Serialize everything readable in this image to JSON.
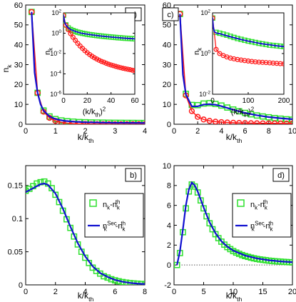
{
  "colors": {
    "green": "#2ee02e",
    "red": "#ff1a1a",
    "blue": "#1010d0",
    "axis": "#000000",
    "zero_line": "#555555"
  },
  "labels": {
    "a": "a)",
    "b": "b)",
    "c": "c)",
    "d": "d)",
    "nk": "n",
    "nk_sub": "k",
    "x_main": "k/k",
    "x_main_sub": "th",
    "x_inset_open": "(k/k",
    "x_inset_sub": "th",
    "x_inset_close": ")",
    "x_inset_sup": "2",
    "legend_b1_main": "n",
    "legend_b1_sub": "k",
    "legend_b1_mid": "-n",
    "legend_b1_sub2": "k",
    "legend_b1_sup2": "th",
    "legend_b2_main": "n",
    "legend_b2_sup": "Sec",
    "legend_b2_sub": "k",
    "legend_b2_mid": "-n",
    "legend_b2_sub2": "k",
    "legend_b2_sup2": "th"
  },
  "chart_data": [
    {
      "panel": "a",
      "type": "line",
      "xlabel": "k/k_th",
      "ylabel": "n_k",
      "xlim": [
        0,
        4
      ],
      "ylim": [
        0,
        60
      ],
      "xticks": [
        0,
        1,
        2,
        3,
        4
      ],
      "yticks": [
        0,
        10,
        20,
        30,
        40,
        50,
        60
      ],
      "series": [
        {
          "style": "green-squares",
          "x": [
            0.2,
            0.4,
            0.6,
            0.8,
            1.0,
            1.2,
            1.4,
            1.6,
            1.8,
            2.0,
            2.2,
            2.4,
            2.6,
            2.8,
            3.0,
            3.2,
            3.4,
            3.6,
            3.8,
            4.0
          ],
          "y": [
            56.5,
            15.8,
            6.9,
            3.9,
            2.6,
            1.9,
            1.5,
            1.3,
            1.1,
            1.0,
            0.9,
            0.85,
            0.8,
            0.75,
            0.72,
            0.7,
            0.68,
            0.66,
            0.64,
            0.62
          ]
        },
        {
          "style": "red-circles",
          "x": [
            0.2,
            0.4,
            0.6,
            0.8,
            1.0,
            1.2,
            1.4,
            1.6,
            1.8,
            2.0,
            2.2,
            2.4,
            2.6,
            2.8,
            3.0,
            3.2,
            3.4,
            3.6,
            3.8,
            4.0
          ],
          "y": [
            56.5,
            15.8,
            6.3,
            3.2,
            1.7,
            0.95,
            0.55,
            0.32,
            0.19,
            0.12,
            0.07,
            0.04,
            0.03,
            0.02,
            0.01,
            0.01,
            0.005,
            0.003,
            0.002,
            0.001
          ]
        },
        {
          "style": "blue-line",
          "x": [
            0.2,
            0.3,
            0.4,
            0.5,
            0.6,
            0.8,
            1.0,
            1.3,
            1.6,
            2.0,
            2.5,
            3.0,
            3.5,
            4.0
          ],
          "y": [
            56.5,
            26.0,
            15.8,
            10.0,
            6.9,
            3.9,
            2.6,
            1.7,
            1.3,
            1.0,
            0.82,
            0.72,
            0.66,
            0.62
          ]
        }
      ],
      "inset": {
        "xlabel": "(k/k_th)^2",
        "ylabel": "n_k",
        "scale": "log",
        "xlim": [
          0,
          60
        ],
        "ylim_exp": [
          -6,
          2
        ],
        "xticks": [
          0,
          20,
          40,
          60
        ],
        "yticks_exp": [
          -6,
          -4,
          -2,
          0,
          2
        ],
        "series": [
          {
            "style": "green-squares",
            "x": [
              0.04,
              2,
              4,
              6,
              8,
              10,
              12,
              14,
              16,
              18,
              20,
              22,
              24,
              26,
              28,
              30,
              32,
              34,
              36,
              38,
              40,
              42,
              44,
              46,
              48,
              50,
              52,
              54,
              56,
              58,
              60
            ],
            "y": [
              56.5,
              6.5,
              3.3,
              2.3,
              1.8,
              1.5,
              1.25,
              1.1,
              0.98,
              0.88,
              0.8,
              0.73,
              0.68,
              0.63,
              0.59,
              0.55,
              0.52,
              0.49,
              0.46,
              0.44,
              0.42,
              0.4,
              0.38,
              0.36,
              0.35,
              0.33,
              0.32,
              0.31,
              0.3,
              0.29,
              0.28
            ]
          },
          {
            "style": "red-circles",
            "x": [
              0.04,
              2,
              4,
              6,
              8,
              10,
              12,
              14,
              16,
              18,
              20,
              22,
              24,
              26,
              28,
              30,
              32,
              34,
              36,
              38,
              40,
              42,
              44,
              46,
              48,
              50,
              52,
              54,
              56,
              58,
              60
            ],
            "y": [
              56.5,
              6.0,
              2.2,
              0.9,
              0.4,
              0.2,
              0.1,
              0.055,
              0.032,
              0.019,
              0.012,
              0.008,
              0.0055,
              0.0039,
              0.0029,
              0.0022,
              0.0017,
              0.0014,
              0.0011,
              0.0009,
              0.00075,
              0.00064,
              0.00055,
              0.00047,
              0.00041,
              0.00036,
              0.00032,
              0.00029,
              0.00026,
              0.00023,
              0.00021
            ]
          },
          {
            "style": "blue-line",
            "x": [
              0.04,
              1,
              2,
              4,
              6,
              10,
              15,
              20,
              30,
              40,
              50,
              60
            ],
            "y": [
              56.5,
              12.0,
              6.5,
              3.3,
              2.3,
              1.5,
              1.0,
              0.8,
              0.55,
              0.42,
              0.33,
              0.28
            ]
          }
        ]
      }
    },
    {
      "panel": "b",
      "type": "line",
      "xlabel": "k/k_th",
      "xlim": [
        0,
        8
      ],
      "ylim": [
        0,
        0.18
      ],
      "xticks": [
        0,
        2,
        4,
        6,
        8
      ],
      "yticks": [
        0,
        0.05,
        0.1,
        0.15
      ],
      "legend": "top-right",
      "series": [
        {
          "style": "green-squares",
          "legend": "b1",
          "x": [
            0.0,
            0.25,
            0.5,
            0.75,
            1.0,
            1.25,
            1.5,
            1.75,
            2.0,
            2.25,
            2.5,
            2.75,
            3.0,
            3.25,
            3.5,
            3.75,
            4.0,
            4.25,
            4.5,
            4.75,
            5.0,
            5.25,
            5.5,
            5.75,
            6.0,
            6.25,
            6.5,
            6.75,
            7.0,
            7.25,
            7.5,
            7.75,
            8.0
          ],
          "y": [
            0.142,
            0.145,
            0.149,
            0.153,
            0.155,
            0.156,
            0.153,
            0.146,
            0.136,
            0.125,
            0.112,
            0.099,
            0.086,
            0.073,
            0.061,
            0.05,
            0.041,
            0.033,
            0.026,
            0.021,
            0.017,
            0.013,
            0.011,
            0.0085,
            0.0068,
            0.0054,
            0.0043,
            0.0034,
            0.0027,
            0.0022,
            0.0018,
            0.0014,
            0.0011
          ]
        },
        {
          "style": "blue-line",
          "legend": "b2",
          "x": [
            0.0,
            0.5,
            1.0,
            1.25,
            1.5,
            2.0,
            2.5,
            3.0,
            3.5,
            4.0,
            4.5,
            5.0,
            5.5,
            6.0,
            6.5,
            7.0,
            7.5,
            8.0
          ],
          "y": [
            0.14,
            0.146,
            0.152,
            0.153,
            0.151,
            0.138,
            0.115,
            0.088,
            0.063,
            0.043,
            0.028,
            0.018,
            0.012,
            0.0075,
            0.0048,
            0.003,
            0.0019,
            0.0012
          ]
        }
      ]
    },
    {
      "panel": "c",
      "type": "line",
      "xlabel": "k/k_th",
      "xlim": [
        0,
        10
      ],
      "ylim": [
        0,
        60
      ],
      "xticks": [
        0,
        2,
        4,
        6,
        8,
        10
      ],
      "yticks": [
        0,
        10,
        20,
        30,
        40,
        50,
        60
      ],
      "series": [
        {
          "style": "green-squares",
          "x": [
            0.5,
            1.0,
            1.5,
            2.0,
            2.5,
            3.0,
            3.5,
            4.0,
            4.5,
            5.0,
            5.5,
            6.0,
            6.5,
            7.0,
            7.5,
            8.0,
            8.5,
            9.0,
            9.5,
            10.0
          ],
          "y": [
            55.5,
            15.3,
            9.7,
            9.6,
            10.4,
            10.6,
            10.2,
            9.4,
            8.4,
            7.4,
            6.5,
            5.7,
            5.0,
            4.4,
            3.9,
            3.5,
            3.1,
            2.8,
            2.5,
            2.3
          ]
        },
        {
          "style": "red-circles",
          "x": [
            0.5,
            1.0,
            1.5,
            2.0,
            2.5,
            3.0,
            3.5,
            4.0,
            4.5,
            5.0,
            5.5,
            6.0,
            6.5,
            7.0,
            7.5,
            8.0,
            8.5,
            9.0,
            9.5,
            10.0
          ],
          "y": [
            55.5,
            14.5,
            6.6,
            3.7,
            2.4,
            1.7,
            1.3,
            1.05,
            0.88,
            0.76,
            0.67,
            0.6,
            0.54,
            0.5,
            0.46,
            0.43,
            0.4,
            0.38,
            0.36,
            0.34
          ]
        },
        {
          "style": "blue-line",
          "x": [
            0.5,
            0.75,
            1.0,
            1.5,
            2.0,
            2.5,
            3.0,
            3.5,
            4.0,
            5.0,
            6.0,
            7.0,
            8.0,
            9.0,
            10.0
          ],
          "y": [
            55.5,
            25.0,
            15.0,
            9.0,
            9.0,
            9.9,
            10.1,
            9.8,
            9.1,
            7.3,
            5.7,
            4.5,
            3.6,
            3.0,
            2.5
          ]
        }
      ],
      "inset": {
        "xlabel": "(k/k_th)^2",
        "ylabel": "n_k",
        "scale": "log",
        "xlim": [
          0,
          200
        ],
        "ylim_exp": [
          -2,
          2
        ],
        "xticks": [
          0,
          100,
          200
        ],
        "yticks_exp": [
          -2,
          0,
          2
        ],
        "series": [
          {
            "style": "green-squares",
            "x": [
              0.25,
              10,
              20,
              30,
              40,
              50,
              60,
              70,
              80,
              90,
              100,
              110,
              120,
              130,
              140,
              150,
              160,
              170,
              180,
              190,
              200
            ],
            "y": [
              55.5,
              11.0,
              10.0,
              9.0,
              8.0,
              7.0,
              6.2,
              5.5,
              5.0,
              4.5,
              4.1,
              3.8,
              3.5,
              3.2,
              3.0,
              2.8,
              2.6,
              2.5,
              2.4,
              2.3,
              2.2
            ]
          },
          {
            "style": "red-circles",
            "x": [
              0.25,
              10,
              20,
              30,
              40,
              50,
              60,
              70,
              80,
              90,
              100,
              110,
              120,
              130,
              140,
              150,
              160,
              170,
              180,
              190,
              200
            ],
            "y": [
              55.5,
              1.6,
              1.0,
              0.8,
              0.68,
              0.6,
              0.55,
              0.51,
              0.48,
              0.45,
              0.43,
              0.41,
              0.39,
              0.38,
              0.37,
              0.36,
              0.35,
              0.34,
              0.33,
              0.32,
              0.31
            ]
          },
          {
            "style": "blue-line",
            "x": [
              0.25,
              2,
              5,
              10,
              20,
              40,
              60,
              80,
              100,
              120,
              140,
              160,
              180,
              200
            ],
            "y": [
              55.5,
              20.0,
              12.0,
              10.2,
              9.5,
              7.5,
              6.0,
              4.9,
              4.1,
              3.5,
              3.0,
              2.7,
              2.4,
              2.2
            ]
          }
        ]
      }
    },
    {
      "panel": "d",
      "type": "line",
      "xlabel": "k/k_th",
      "xlim": [
        0,
        20
      ],
      "ylim": [
        -2,
        10
      ],
      "xticks": [
        0,
        5,
        10,
        15,
        20
      ],
      "yticks": [
        -2,
        0,
        2,
        4,
        6,
        8,
        10
      ],
      "legend": "top-right",
      "series": [
        {
          "style": "green-squares",
          "legend": "b1",
          "x": [
            0.5,
            1.0,
            1.5,
            2.0,
            2.5,
            3.0,
            3.5,
            4.0,
            4.5,
            5.0,
            5.5,
            6.0,
            6.5,
            7.0,
            7.5,
            8.0,
            8.5,
            9.0,
            9.5,
            10.0,
            10.5,
            11.0,
            11.5,
            12.0,
            12.5,
            13.0,
            13.5,
            14.0,
            14.5,
            15.0,
            15.5,
            16.0,
            16.5,
            17.0,
            17.5,
            18.0,
            18.5,
            19.0,
            19.5,
            20.0
          ],
          "y": [
            0.0,
            1.2,
            3.3,
            5.7,
            7.4,
            8.1,
            7.9,
            7.3,
            6.5,
            5.7,
            4.9,
            4.2,
            3.6,
            3.1,
            2.7,
            2.35,
            2.05,
            1.8,
            1.6,
            1.4,
            1.25,
            1.12,
            1.0,
            0.9,
            0.82,
            0.74,
            0.67,
            0.61,
            0.56,
            0.52,
            0.48,
            0.44,
            0.41,
            0.38,
            0.36,
            0.34,
            0.32,
            0.3,
            0.28,
            0.27
          ]
        },
        {
          "style": "blue-line",
          "legend": "b2",
          "x": [
            0.5,
            1.0,
            1.5,
            2.0,
            2.5,
            3.0,
            3.5,
            4.0,
            5.0,
            6.0,
            7.0,
            8.0,
            9.0,
            10.0,
            12.0,
            14.0,
            16.0,
            18.0,
            20.0
          ],
          "y": [
            0.0,
            1.4,
            3.6,
            6.0,
            7.6,
            8.3,
            8.0,
            7.4,
            5.8,
            4.3,
            3.2,
            2.4,
            1.85,
            1.45,
            0.95,
            0.66,
            0.48,
            0.36,
            0.28
          ]
        }
      ],
      "zero_line": true
    }
  ]
}
